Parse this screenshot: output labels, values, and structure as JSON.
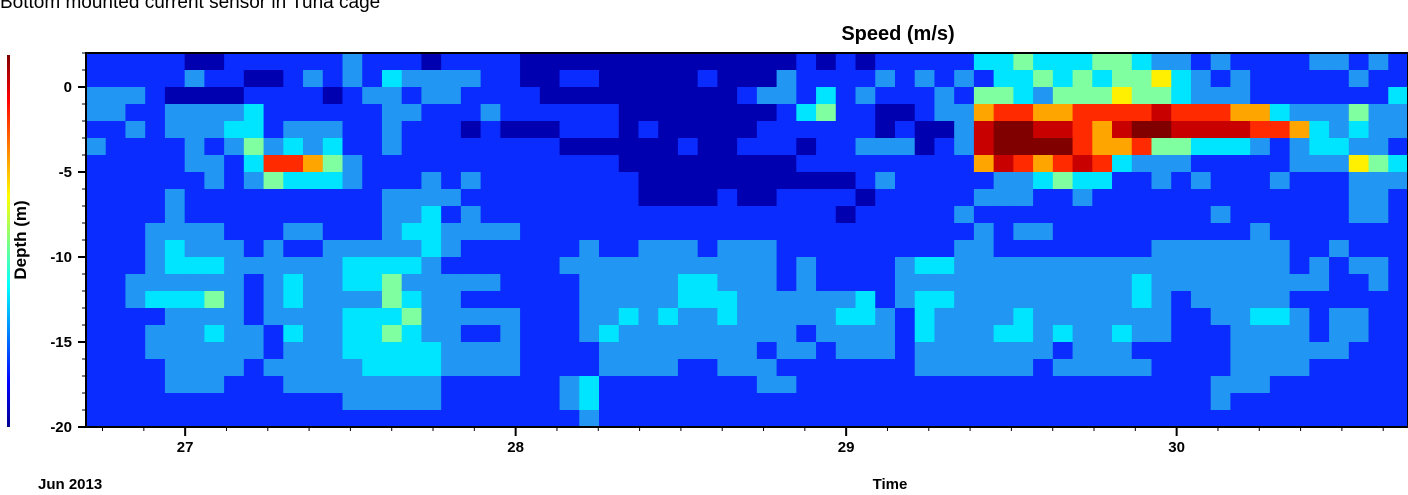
{
  "caption": "Bottom mounted  current sensor in Tuna cage",
  "chart_data": {
    "type": "heatmap",
    "title": "Speed (m/s)",
    "xlabel": "Time",
    "ylabel": "Depth (m)",
    "x_ticks": [
      "27",
      "28",
      "29",
      "30"
    ],
    "x_sublabel": "Jun 2013",
    "y_ticks": [
      "0",
      "-5",
      "-10",
      "-15",
      "-20"
    ],
    "xlim_days_jun": [
      26.7,
      30.7
    ],
    "ylim": [
      -20,
      2
    ],
    "colormap": "jet",
    "grid": false,
    "legend": "none",
    "z_scale": "0 = min speed (dark blue) … 9 = max speed (dark red)",
    "rows_top_to_bottom_depth_m": [
      1,
      0,
      -1,
      -2,
      -3,
      -4,
      -5,
      -6,
      -7,
      -8,
      -9,
      -10,
      -11,
      -12,
      -13,
      -14,
      -15,
      -16,
      -17,
      -18,
      -19,
      -20
    ],
    "columns_x_days_jun": [
      26.73,
      26.79,
      26.85,
      26.91,
      26.97,
      27.03,
      27.09,
      27.15,
      27.21,
      27.27,
      27.33,
      27.39,
      27.45,
      27.51,
      27.57,
      27.63,
      27.69,
      27.75,
      27.81,
      27.87,
      27.93,
      27.99,
      28.05,
      28.11,
      28.17,
      28.23,
      28.29,
      28.35,
      28.41,
      28.47,
      28.53,
      28.59,
      28.65,
      28.71,
      28.77,
      28.83,
      28.89,
      28.95,
      29.01,
      29.07,
      29.13,
      29.19,
      29.25,
      29.31,
      29.37,
      29.43,
      29.49,
      29.55,
      29.61,
      29.67,
      29.73,
      29.79,
      29.85,
      29.91,
      29.97,
      30.03,
      30.09,
      30.15,
      30.21,
      30.27,
      30.33,
      30.39,
      30.45,
      30.51,
      30.57,
      30.63,
      30.69
    ],
    "z_rows": [
      "1111100111111211101111000000000000001010111113343334432212111122121",
      "1111121100121213222211001100000100021111212121334343445321211111211",
      "2221000011110122122111100000000001221312111214432444544322211111113",
      "2211222231111112211121111110000000013411001226776677778777663222422",
      "1121222331222112111010001110100000111111010028998876899888877632322",
      "2111121242323112111111110000001001110112220128999976674433321233221",
      "1111122137764211111111111110000000001111111116876787322211111222543",
      "1111112124333211121211111111000000000001211111223433112121112111222",
      "1111211111111112222111111111000010011110111112221121111111111111221",
      "1111211111111112231211111111111111111101111121111111111112111111221",
      "1112222111221112332222111111111111111111111112122111111111121111111",
      "1112322212112222232111111211222122211111111122111111112222222112111",
      "1112333222222333321111112222222222212111123322222222222222222121221",
      "1122222212322334222221111222223322212111122222222222232222222221121",
      "1123334212322224322111111222223332222223123322222222232122222111111",
      "1111222212222333422222111223232232222233213222232222222112233212211",
      "1112223221322334322112111232222222221222213222332322322111222212211",
      "1112222221222333332222111122222222122122212222222122211111222222111",
      "1111222212222233332222111122221122211111112222221222221111222211111",
      "1111222111222222221111112311111111221111111111111111111112221111111",
      "1111111111111222221111112311111111111111111111111111111112111111111",
      "1111111111111111111111111211111111111111111111111111111111111111111"
    ],
    "value_ranges_visible": "highest speeds (red/dark red) at depth -2 to -4 m between Jun 29.2 and Jun 30.1; low speeds (dark blue) below -15 m"
  }
}
